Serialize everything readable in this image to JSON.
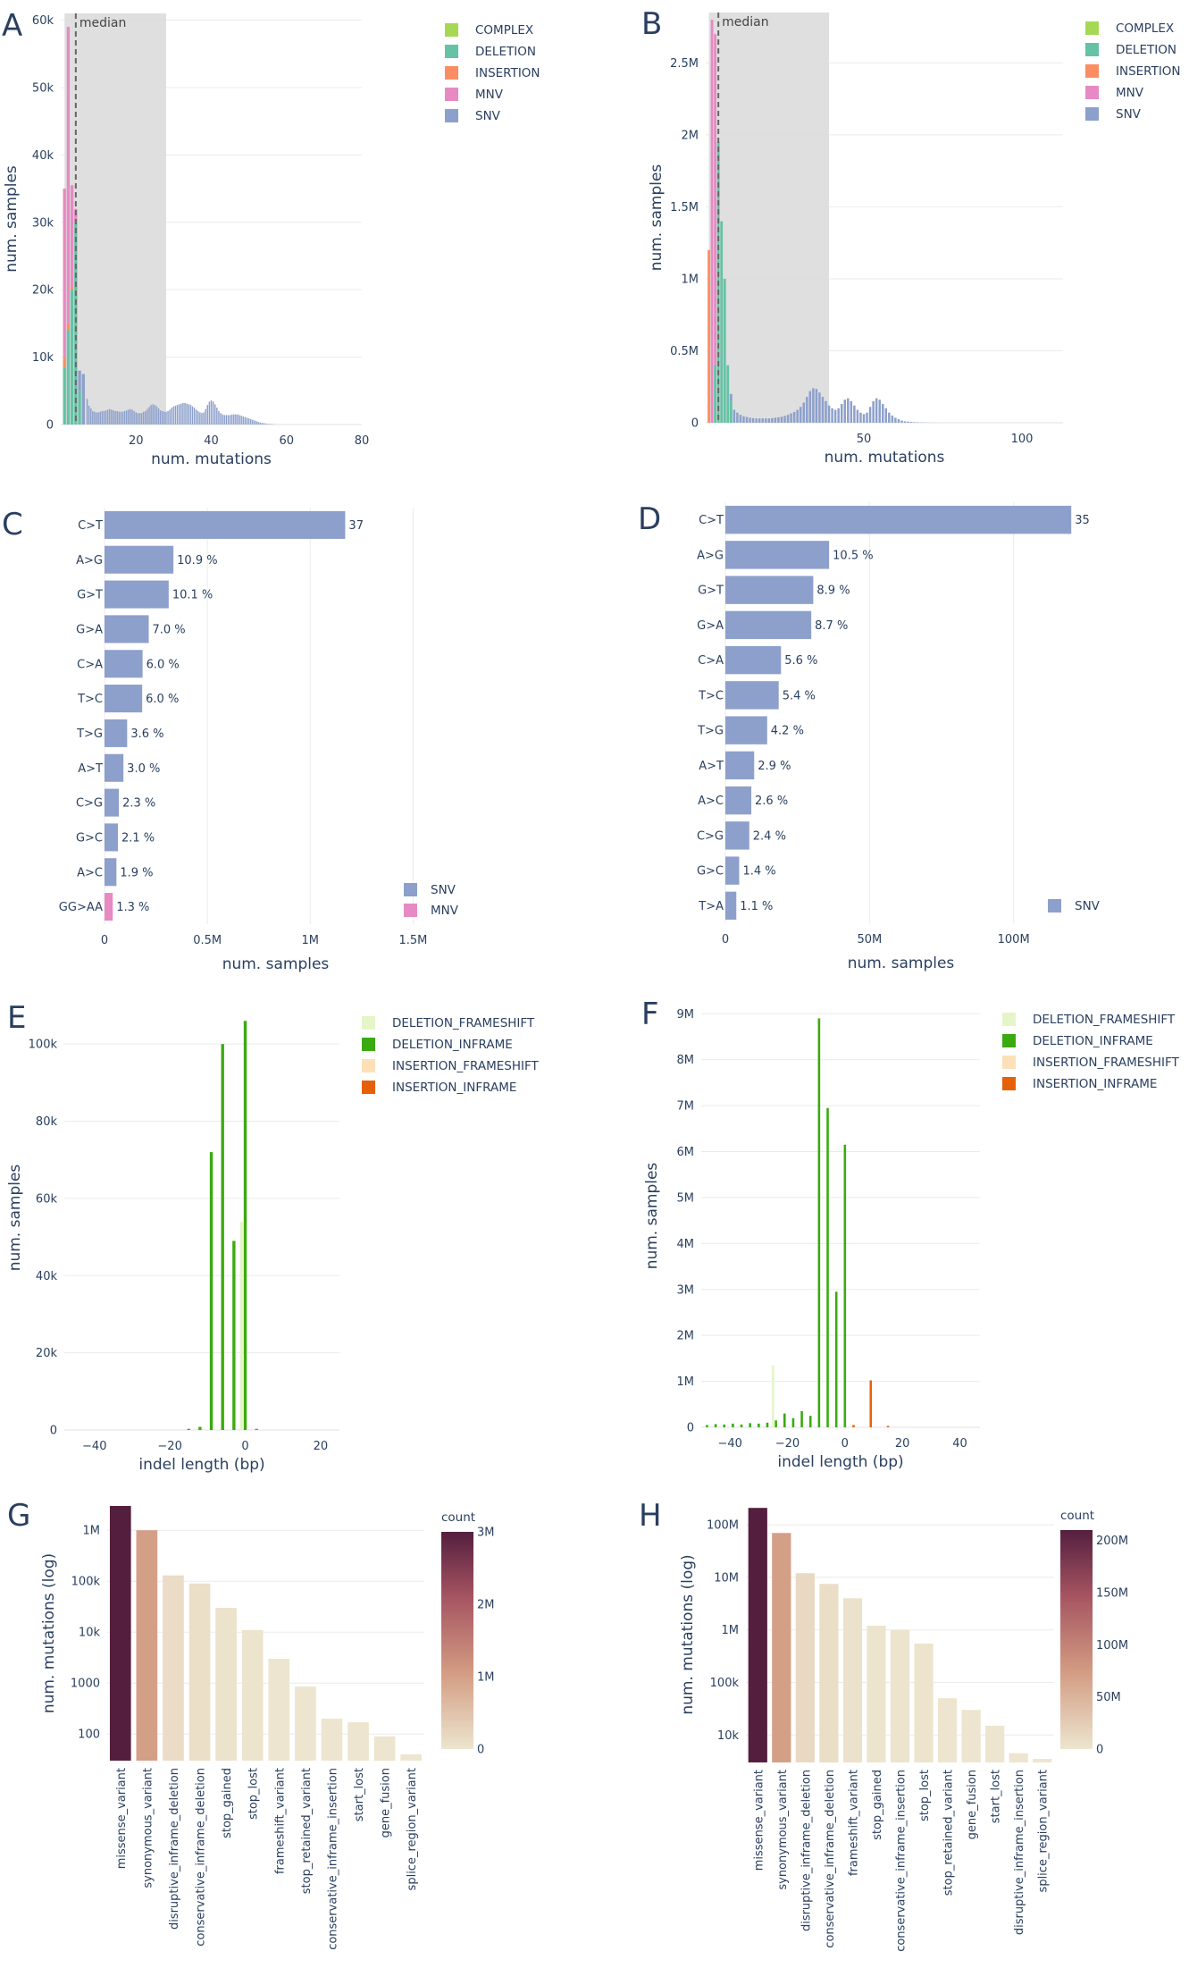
{
  "colors": {
    "COMPLEX": "#a6d854",
    "DELETION": "#66c2a5",
    "INSERTION": "#fc8d62",
    "MNV": "#e78ac3",
    "SNV": "#8da0cb",
    "DELETION_FRAMESHIFT": "#e5f5c8",
    "DELETION_INFRAME": "#3aaa10",
    "INSERTION_FRAMESHIFT": "#fde0b8",
    "INSERTION_INFRAME": "#e6600a",
    "shade": "#dcdcdc"
  },
  "chart_data": [
    {
      "panel": "A",
      "type": "bar",
      "xlabel": "num. mutations",
      "ylabel": "num. samples",
      "xlim": [
        0,
        80
      ],
      "ylim": [
        0,
        61000
      ],
      "xticks": [
        "20",
        "40",
        "60",
        "80"
      ],
      "xtick_values": [
        20,
        40,
        60,
        80
      ],
      "yticks": [
        "0",
        "10k",
        "20k",
        "30k",
        "40k",
        "50k",
        "60k"
      ],
      "ytick_values": [
        0,
        10000,
        20000,
        30000,
        40000,
        50000,
        60000
      ],
      "shaded_range": [
        1,
        28
      ],
      "median": 4,
      "median_label": "median",
      "legend": [
        "COMPLEX",
        "DELETION",
        "INSERTION",
        "MNV",
        "SNV"
      ],
      "legend_position": "top-right",
      "stacks": [
        {
          "x": 1,
          "DELETION": 8500,
          "INSERTION": 1500,
          "MNV": 25000,
          "SNV": 0
        },
        {
          "x": 2,
          "DELETION": 14000,
          "INSERTION": 1000,
          "MNV": 44000,
          "SNV": 0
        },
        {
          "x": 3,
          "DELETION": 20000,
          "INSERTION": 500,
          "MNV": 15000,
          "SNV": 0
        },
        {
          "x": 4,
          "DELETION": 30000,
          "INSERTION": 0,
          "MNV": 2000,
          "SNV": 0
        },
        {
          "x": 5,
          "DELETION": 5000,
          "INSERTION": 0,
          "MNV": 0,
          "SNV": 3000
        },
        {
          "x": 6,
          "DELETION": 0,
          "INSERTION": 0,
          "MNV": 0,
          "SNV": 7500
        }
      ],
      "snv_x": [
        7,
        7.5,
        8,
        8.5,
        9,
        9.5,
        10,
        10.5,
        11,
        11.5,
        12,
        12.5,
        13,
        13.5,
        14,
        14.5,
        15,
        15.5,
        16,
        16.5,
        17,
        17.5,
        18,
        18.5,
        19,
        19.5,
        20,
        20.5,
        21,
        21.5,
        22,
        22.5,
        23,
        23.5,
        24,
        24.5,
        25,
        25.5,
        26,
        26.5,
        27,
        27.5,
        28,
        28.5,
        29,
        29.5,
        30,
        30.5,
        31,
        31.5,
        32,
        32.5,
        33,
        33.5,
        34,
        34.5,
        35,
        35.5,
        36,
        36.5,
        37,
        37.5,
        38,
        38.5,
        39,
        39.5,
        40,
        40.5,
        41,
        41.5,
        42,
        42.5,
        43,
        43.5,
        44,
        44.5,
        45,
        45.5,
        46,
        46.5,
        47,
        47.5,
        48,
        48.5,
        49,
        49.5,
        50,
        50.5,
        51,
        51.5,
        52,
        52.5,
        53,
        53.5,
        54,
        54.5,
        55,
        55.5,
        56,
        56.5,
        57,
        57.5,
        58,
        58.5,
        59,
        59.5,
        60,
        60.5,
        61,
        61.5,
        62,
        62.5,
        63,
        63.5,
        64,
        64.5,
        65,
        65.5,
        66,
        66.5,
        67,
        67.5,
        68,
        68.5,
        69,
        69.5,
        70,
        70.5,
        71,
        71.5,
        72
      ],
      "snv_values": [
        3800,
        2800,
        2400,
        2000,
        1900,
        1800,
        1800,
        1900,
        2000,
        2000,
        2100,
        2200,
        2300,
        2200,
        2100,
        2000,
        2000,
        1900,
        1900,
        1900,
        2000,
        2100,
        2200,
        2300,
        2200,
        2000,
        1800,
        1700,
        1700,
        1700,
        1900,
        2000,
        2300,
        2600,
        2900,
        3000,
        2900,
        2700,
        2400,
        2100,
        2000,
        1900,
        1900,
        2000,
        2200,
        2500,
        2700,
        2800,
        2900,
        3000,
        3100,
        3200,
        3200,
        3100,
        3000,
        2900,
        2700,
        2500,
        2200,
        2000,
        1800,
        1700,
        1800,
        2300,
        2900,
        3400,
        3600,
        3400,
        3000,
        2500,
        2000,
        1700,
        1500,
        1400,
        1400,
        1400,
        1400,
        1500,
        1500,
        1500,
        1500,
        1400,
        1300,
        1200,
        1100,
        1000,
        900,
        800,
        700,
        600,
        500,
        400,
        300,
        250,
        200,
        150,
        100,
        80,
        60,
        40
      ]
    },
    {
      "panel": "B",
      "type": "bar",
      "xlabel": "num. mutations",
      "ylabel": "num. samples",
      "xlim": [
        0,
        113
      ],
      "ylim": [
        0,
        2850000
      ],
      "xticks": [
        "50",
        "100"
      ],
      "xtick_values": [
        50,
        100
      ],
      "yticks": [
        "0",
        "0.5M",
        "1M",
        "1.5M",
        "2M",
        "2.5M"
      ],
      "ytick_values": [
        0,
        500000,
        1000000,
        1500000,
        2000000,
        2500000
      ],
      "shaded_range": [
        1,
        39
      ],
      "median": 4,
      "median_label": "median",
      "legend": [
        "COMPLEX",
        "DELETION",
        "INSERTION",
        "MNV",
        "SNV"
      ],
      "legend_position": "top-right",
      "stacks": [
        {
          "x": 1,
          "DELETION": 0,
          "INSERTION": 1200000,
          "MNV": 0,
          "SNV": 0
        },
        {
          "x": 2,
          "DELETION": 0,
          "INSERTION": 0,
          "MNV": 2800000,
          "SNV": 0
        },
        {
          "x": 3,
          "DELETION": 400000,
          "INSERTION": 0,
          "MNV": 2300000,
          "SNV": 0
        },
        {
          "x": 4,
          "DELETION": 1950000,
          "INSERTION": 0,
          "MNV": 0,
          "SNV": 0
        },
        {
          "x": 5,
          "DELETION": 1400000,
          "INSERTION": 0,
          "MNV": 0,
          "SNV": 0
        },
        {
          "x": 6,
          "DELETION": 1000000,
          "INSERTION": 0,
          "MNV": 0,
          "SNV": 0
        },
        {
          "x": 7,
          "DELETION": 400000,
          "INSERTION": 0,
          "MNV": 0,
          "SNV": 0
        },
        {
          "x": 8,
          "DELETION": 150000,
          "INSERTION": 0,
          "MNV": 0,
          "SNV": 50000
        }
      ],
      "snv_x": [
        9,
        10,
        11,
        12,
        13,
        14,
        15,
        16,
        17,
        18,
        19,
        20,
        21,
        22,
        23,
        24,
        25,
        26,
        27,
        28,
        29,
        30,
        31,
        32,
        33,
        34,
        35,
        36,
        37,
        38,
        39,
        40,
        41,
        42,
        43,
        44,
        45,
        46,
        47,
        48,
        49,
        50,
        51,
        52,
        53,
        54,
        55,
        56,
        57,
        58,
        59,
        60,
        61,
        62,
        63,
        64,
        65,
        66,
        67,
        68,
        69,
        70,
        71,
        72,
        73,
        74,
        75
      ],
      "snv_values": [
        90000,
        70000,
        55000,
        45000,
        40000,
        35000,
        32000,
        30000,
        30000,
        30000,
        30000,
        30000,
        32000,
        35000,
        38000,
        42000,
        48000,
        55000,
        65000,
        75000,
        90000,
        110000,
        140000,
        180000,
        220000,
        240000,
        235000,
        210000,
        180000,
        150000,
        120000,
        100000,
        90000,
        100000,
        130000,
        160000,
        170000,
        150000,
        120000,
        90000,
        70000,
        60000,
        70000,
        110000,
        150000,
        170000,
        160000,
        130000,
        100000,
        70000,
        50000,
        35000,
        25000,
        15000,
        10000,
        8000,
        6000,
        4000,
        3000,
        2000,
        1500,
        1000,
        800,
        600,
        400,
        300,
        200
      ]
    },
    {
      "panel": "C",
      "type": "bar",
      "orientation": "horizontal",
      "xlabel": "num. samples",
      "xlim": [
        0,
        1750000
      ],
      "xticks": [
        "0",
        "0.5M",
        "1M",
        "1.5M"
      ],
      "xtick_values": [
        0,
        500000,
        1000000,
        1500000
      ],
      "categories": [
        "C>T",
        "A>G",
        "G>T",
        "G>A",
        "C>A",
        "T>C",
        "T>G",
        "A>T",
        "C>G",
        "G>C",
        "A>C",
        "GG>AA"
      ],
      "values": [
        1170000,
        335000,
        312000,
        215000,
        185000,
        183000,
        110000,
        92000,
        70000,
        65000,
        58000,
        40000
      ],
      "labels": [
        "37",
        "10.9 %",
        "10.1 %",
        "7.0 %",
        "6.0 %",
        "6.0 %",
        "3.6 %",
        "3.0 %",
        "2.3 %",
        "2.1 %",
        "1.9 %",
        "1.3 %"
      ],
      "types": [
        "SNV",
        "SNV",
        "SNV",
        "SNV",
        "SNV",
        "SNV",
        "SNV",
        "SNV",
        "SNV",
        "SNV",
        "SNV",
        "MNV"
      ],
      "legend": [
        "SNV",
        "MNV"
      ],
      "legend_position": "bottom-right"
    },
    {
      "panel": "D",
      "type": "bar",
      "orientation": "horizontal",
      "xlabel": "num. samples",
      "xlim": [
        0,
        128000000
      ],
      "xticks": [
        "0",
        "50M",
        "100M"
      ],
      "xtick_values": [
        0,
        50000000,
        100000000
      ],
      "categories": [
        "C>T",
        "A>G",
        "G>T",
        "G>A",
        "C>A",
        "T>C",
        "T>G",
        "A>T",
        "A>C",
        "C>G",
        "G>C",
        "T>A"
      ],
      "values": [
        120000000,
        36000000,
        30500000,
        29800000,
        19300000,
        18500000,
        14500000,
        10000000,
        9000000,
        8300000,
        4800000,
        3800000
      ],
      "labels": [
        "35",
        "10.5 %",
        "8.9 %",
        "8.7 %",
        "5.6 %",
        "5.4 %",
        "4.2 %",
        "2.9 %",
        "2.6 %",
        "2.4 %",
        "1.4 %",
        "1.1 %"
      ],
      "types": [
        "SNV",
        "SNV",
        "SNV",
        "SNV",
        "SNV",
        "SNV",
        "SNV",
        "SNV",
        "SNV",
        "SNV",
        "SNV",
        "SNV"
      ],
      "legend": [
        "SNV"
      ],
      "legend_position": "bottom-right"
    },
    {
      "panel": "E",
      "type": "bar",
      "xlabel": "indel length (bp)",
      "ylabel": "num. samples",
      "xlim": [
        -48,
        25
      ],
      "ylim": [
        0,
        110000
      ],
      "xticks": [
        "−40",
        "−20",
        "0",
        "20"
      ],
      "xtick_values": [
        -40,
        -20,
        0,
        20
      ],
      "yticks": [
        "0",
        "20k",
        "40k",
        "60k",
        "80k",
        "100k"
      ],
      "ytick_values": [
        0,
        20000,
        40000,
        60000,
        80000,
        100000
      ],
      "legend": [
        "DELETION_FRAMESHIFT",
        "DELETION_INFRAME",
        "INSERTION_FRAMESHIFT",
        "INSERTION_INFRAME"
      ],
      "legend_position": "top-right",
      "bars": [
        {
          "x": -15,
          "value": 300,
          "type": "DELETION_INFRAME"
        },
        {
          "x": -12,
          "value": 800,
          "type": "DELETION_INFRAME"
        },
        {
          "x": -9,
          "value": 72000,
          "type": "DELETION_INFRAME"
        },
        {
          "x": -6,
          "value": 100000,
          "type": "DELETION_INFRAME"
        },
        {
          "x": -3,
          "value": 49000,
          "type": "DELETION_INFRAME"
        },
        {
          "x": -1,
          "value": 54000,
          "type": "DELETION_FRAMESHIFT"
        },
        {
          "x": 0,
          "value": 106000,
          "type": "DELETION_INFRAME"
        },
        {
          "x": 3,
          "value": 300,
          "type": "INSERTION_INFRAME"
        }
      ]
    },
    {
      "panel": "F",
      "type": "bar",
      "xlabel": "indel length (bp)",
      "ylabel": "num. samples",
      "xlim": [
        -50,
        47
      ],
      "ylim": [
        0,
        9200000
      ],
      "xticks": [
        "−40",
        "−20",
        "0",
        "20",
        "40"
      ],
      "xtick_values": [
        -40,
        -20,
        0,
        20,
        40
      ],
      "yticks": [
        "0",
        "1M",
        "2M",
        "3M",
        "4M",
        "5M",
        "6M",
        "7M",
        "8M",
        "9M"
      ],
      "ytick_values": [
        0,
        1000000,
        2000000,
        3000000,
        4000000,
        5000000,
        6000000,
        7000000,
        8000000,
        9000000
      ],
      "legend": [
        "DELETION_FRAMESHIFT",
        "DELETION_INFRAME",
        "INSERTION_FRAMESHIFT",
        "INSERTION_INFRAME"
      ],
      "legend_position": "top-right",
      "bars": [
        {
          "x": -48,
          "value": 50000,
          "type": "DELETION_INFRAME"
        },
        {
          "x": -45,
          "value": 70000,
          "type": "DELETION_INFRAME"
        },
        {
          "x": -42,
          "value": 60000,
          "type": "DELETION_INFRAME"
        },
        {
          "x": -39,
          "value": 80000,
          "type": "DELETION_INFRAME"
        },
        {
          "x": -36,
          "value": 60000,
          "type": "DELETION_INFRAME"
        },
        {
          "x": -33,
          "value": 90000,
          "type": "DELETION_INFRAME"
        },
        {
          "x": -30,
          "value": 80000,
          "type": "DELETION_INFRAME"
        },
        {
          "x": -27,
          "value": 100000,
          "type": "DELETION_INFRAME"
        },
        {
          "x": -25,
          "value": 1350000,
          "type": "DELETION_FRAMESHIFT"
        },
        {
          "x": -24,
          "value": 150000,
          "type": "DELETION_INFRAME"
        },
        {
          "x": -21,
          "value": 300000,
          "type": "DELETION_INFRAME"
        },
        {
          "x": -18,
          "value": 200000,
          "type": "DELETION_INFRAME"
        },
        {
          "x": -15,
          "value": 350000,
          "type": "DELETION_INFRAME"
        },
        {
          "x": -12,
          "value": 250000,
          "type": "DELETION_INFRAME"
        },
        {
          "x": -9,
          "value": 8900000,
          "type": "DELETION_INFRAME"
        },
        {
          "x": -6,
          "value": 6950000,
          "type": "DELETION_INFRAME"
        },
        {
          "x": -3,
          "value": 2950000,
          "type": "DELETION_INFRAME"
        },
        {
          "x": 0,
          "value": 6150000,
          "type": "DELETION_INFRAME"
        },
        {
          "x": 3,
          "value": 50000,
          "type": "INSERTION_INFRAME"
        },
        {
          "x": 9,
          "value": 1020000,
          "type": "INSERTION_INFRAME"
        },
        {
          "x": 15,
          "value": 30000,
          "type": "INSERTION_INFRAME"
        }
      ]
    },
    {
      "panel": "G",
      "type": "bar",
      "yscale": "log",
      "ylabel": "num. mutations (log)",
      "ylim": [
        30,
        3000000
      ],
      "yticks": [
        "100",
        "1000",
        "10k",
        "100k",
        "1M"
      ],
      "ytick_values": [
        100,
        1000,
        10000,
        100000,
        1000000
      ],
      "categories": [
        "missense_variant",
        "synonymous_variant",
        "disruptive_inframe_deletion",
        "conservative_inframe_deletion",
        "stop_gained",
        "stop_lost",
        "frameshift_variant",
        "stop_retained_variant",
        "conservative_inframe_insertion",
        "start_lost",
        "gene_fusion",
        "splice_region_variant"
      ],
      "values": [
        3000000,
        1000000,
        130000,
        90000,
        30000,
        11000,
        3000,
        850,
        200,
        170,
        90,
        40
      ],
      "colorbar": {
        "title": "count",
        "max": 3000000,
        "ticks": [
          "0",
          "1M",
          "2M",
          "3M"
        ],
        "tick_values": [
          0,
          1000000,
          2000000,
          3000000
        ]
      }
    },
    {
      "panel": "H",
      "type": "bar",
      "yscale": "log",
      "ylabel": "num. mutations (log)",
      "ylim": [
        3000,
        220000000
      ],
      "yticks": [
        "10k",
        "100k",
        "1M",
        "10M",
        "100M"
      ],
      "ytick_values": [
        10000,
        100000,
        1000000,
        10000000,
        100000000
      ],
      "categories": [
        "missense_variant",
        "synonymous_variant",
        "disruptive_inframe_deletion",
        "conservative_inframe_deletion",
        "frameshift_variant",
        "stop_gained",
        "conservative_inframe_insertion",
        "stop_lost",
        "stop_retained_variant",
        "gene_fusion",
        "start_lost",
        "disruptive_inframe_insertion",
        "splice_region_variant"
      ],
      "values": [
        210000000,
        70000000,
        12000000,
        7500000,
        4000000,
        1200000,
        1000000,
        550000,
        50000,
        30000,
        15000,
        4500,
        3500
      ],
      "colorbar": {
        "title": "count",
        "max": 210000000,
        "ticks": [
          "0",
          "50M",
          "100M",
          "150M",
          "200M"
        ],
        "tick_values": [
          0,
          50000000,
          100000000,
          150000000,
          200000000
        ]
      }
    }
  ]
}
